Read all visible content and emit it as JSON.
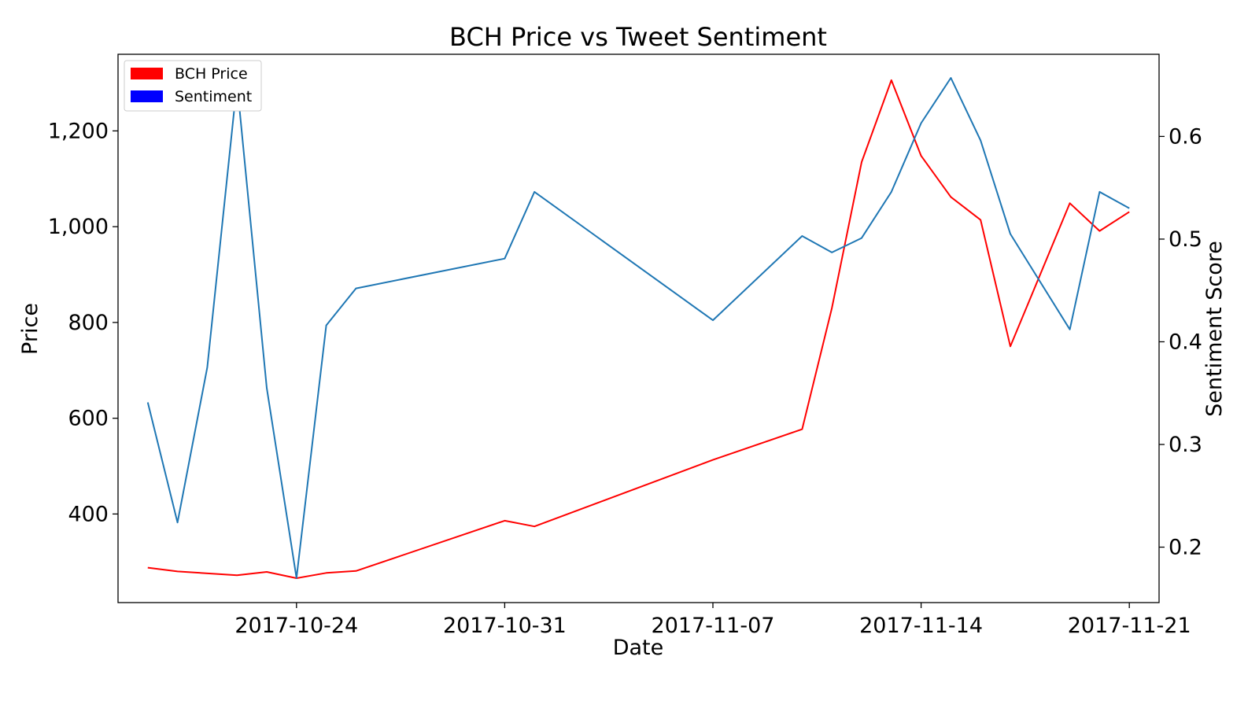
{
  "chart_data": {
    "type": "line",
    "title": "BCH Price vs Tweet Sentiment",
    "xlabel": "Date",
    "ylabel_left": "Price",
    "ylabel_right": "Sentiment Score",
    "x_ticks": [
      "2017-10-24",
      "2017-10-31",
      "2017-11-07",
      "2017-11-14",
      "2017-11-21"
    ],
    "y_left_ticks": [
      400,
      600,
      800,
      1000,
      1200
    ],
    "y_left_tick_labels": [
      "400",
      "600",
      "800",
      "1,000",
      "1,200"
    ],
    "y_right_ticks": [
      0.2,
      0.3,
      0.4,
      0.5,
      0.6
    ],
    "y_right_tick_labels": [
      "0.2",
      "0.3",
      "0.4",
      "0.5",
      "0.6"
    ],
    "x_range": [
      "2017-10-18",
      "2017-11-22"
    ],
    "y_left_range": [
      215,
      1360
    ],
    "y_right_range": [
      0.146,
      0.68
    ],
    "legend_position": "top-left",
    "legend": [
      {
        "label": "BCH Price",
        "color": "#ff0000"
      },
      {
        "label": "Sentiment",
        "color": "#0000ff"
      }
    ],
    "grid": false,
    "series": [
      {
        "name": "BCH Price",
        "axis": "left",
        "color": "#ff0000",
        "x": [
          "2017-10-19",
          "2017-10-20",
          "2017-10-22",
          "2017-10-23",
          "2017-10-24",
          "2017-10-25",
          "2017-10-26",
          "2017-10-31",
          "2017-11-01",
          "2017-11-07",
          "2017-11-10",
          "2017-11-11",
          "2017-11-12",
          "2017-11-13",
          "2017-11-14",
          "2017-11-15",
          "2017-11-16",
          "2017-11-17",
          "2017-11-19",
          "2017-11-20",
          "2017-11-21"
        ],
        "values": [
          288,
          280,
          272,
          279,
          266,
          277,
          281,
          386,
          374,
          513,
          577,
          830,
          1135,
          1306,
          1148,
          1062,
          1014,
          750,
          1049,
          991,
          1031
        ]
      },
      {
        "name": "Sentiment",
        "axis": "right",
        "color": "#1f77b4",
        "x": [
          "2017-10-19",
          "2017-10-20",
          "2017-10-21",
          "2017-10-22",
          "2017-10-23",
          "2017-10-24",
          "2017-10-25",
          "2017-10-26",
          "2017-10-31",
          "2017-11-01",
          "2017-11-07",
          "2017-11-10",
          "2017-11-11",
          "2017-11-12",
          "2017-11-13",
          "2017-11-14",
          "2017-11-15",
          "2017-11-16",
          "2017-11-17",
          "2017-11-19",
          "2017-11-20",
          "2017-11-21"
        ],
        "values": [
          0.341,
          0.224,
          0.375,
          0.652,
          0.355,
          0.17,
          0.416,
          0.452,
          0.481,
          0.546,
          0.421,
          0.503,
          0.487,
          0.501,
          0.546,
          0.613,
          0.657,
          0.596,
          0.505,
          0.412,
          0.546,
          0.53
        ]
      }
    ]
  }
}
